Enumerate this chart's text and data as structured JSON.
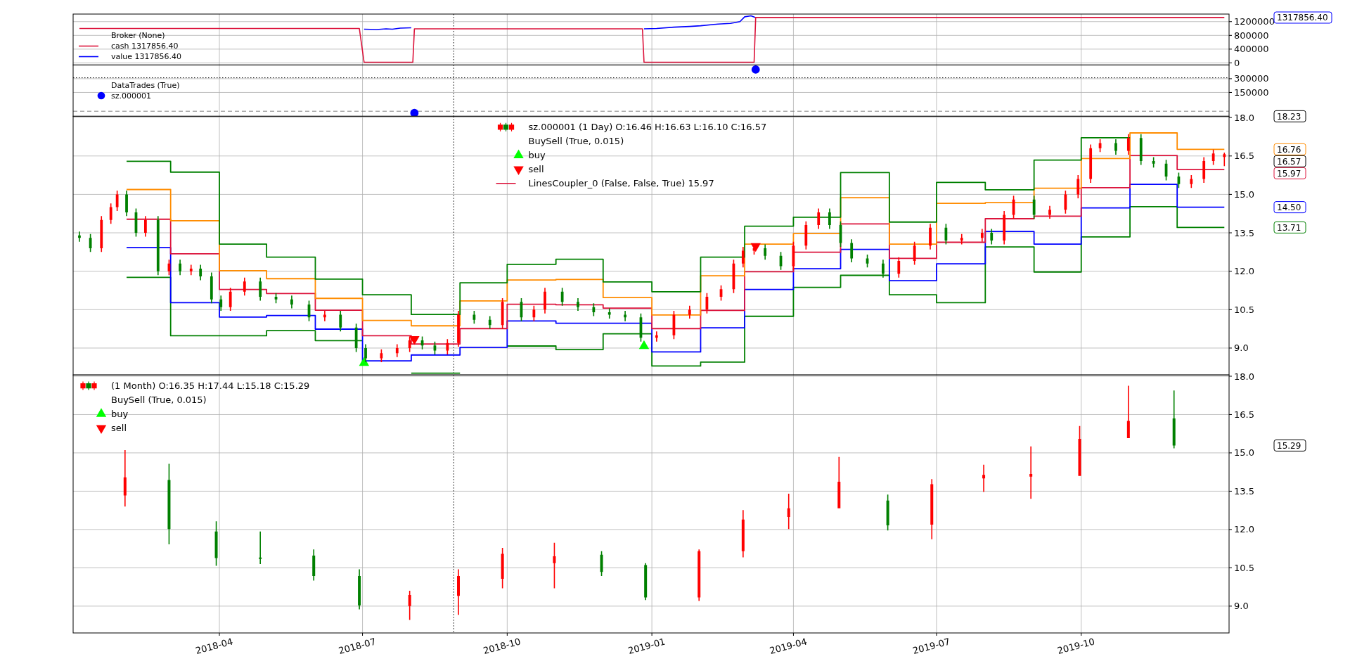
{
  "chart_data": [
    {
      "type": "line",
      "legend_title": "Broker (None)",
      "legend": "bottom left",
      "grid": true,
      "tick_labels": "y",
      "xlim": [
        "2017-12-29",
        "2020-01-03"
      ],
      "xticks": [
        "2018-04",
        "2018-07",
        "2018-10",
        "2019-01",
        "2019-04",
        "2019-07",
        "2019-10"
      ],
      "ylim": [
        -60000,
        1420000
      ],
      "yticks": [
        0,
        400000,
        800000,
        1200000
      ],
      "series": [
        {
          "name": "cash 1317856.40",
          "color": "#dc143c",
          "x": [
            "2018-01-02",
            "2018-06-29",
            "2018-07-02",
            "2018-08-02",
            "2018-08-03",
            "2018-12-26",
            "2018-12-27",
            "2019-03-07",
            "2019-03-08",
            "2019-12-31"
          ],
          "values": [
            1000000,
            1000000,
            20000,
            20000,
            990000,
            990000,
            20000,
            20000,
            1320000,
            1320000
          ]
        },
        {
          "name": "value 1317856.40",
          "color": "#0000ff",
          "x": [
            "2018-07-02",
            "2018-07-10",
            "2018-07-16",
            "2018-07-20",
            "2018-07-25",
            "2018-08-01",
            "2018-08-03",
            "2018-12-27",
            "2019-01-04",
            "2019-01-15",
            "2019-01-25",
            "2019-02-01",
            "2019-02-12",
            "2019-02-20",
            "2019-02-26",
            "2019-03-01",
            "2019-03-05",
            "2019-03-08"
          ],
          "values": [
            980000,
            970000,
            990000,
            980000,
            1010000,
            1020000,
            null,
            990000,
            1000000,
            1040000,
            1060000,
            1080000,
            1130000,
            1150000,
            1200000,
            1340000,
            1370000,
            1320000
          ]
        }
      ],
      "ref_lines": [
        {
          "axis": "x",
          "value": "2018-08-28",
          "line_style": "dotted",
          "color": "#000000"
        }
      ],
      "annotations": [
        "1317856.40"
      ]
    },
    {
      "type": "scatter",
      "legend_title": "DataTrades (True)",
      "legend": "left",
      "marker": "circle",
      "grid": true,
      "tick_labels": "y",
      "xlim": [
        "2017-12-29",
        "2020-01-03"
      ],
      "xticks": [
        "2018-04",
        "2018-07",
        "2018-10",
        "2019-01",
        "2019-04",
        "2019-07",
        "2019-10"
      ],
      "ylim": [
        -110000,
        450000
      ],
      "yticks": [
        150000,
        300000
      ],
      "series": [
        {
          "name": "sz.000001",
          "color": "#0000ff",
          "x": [
            "2018-08-03",
            "2019-03-08"
          ],
          "values": [
            -75000,
            400000
          ]
        }
      ],
      "ref_lines": [
        {
          "axis": "y",
          "value": 310000,
          "line_style": "dotted",
          "color": "#000000"
        },
        {
          "axis": "y",
          "value": -55000,
          "line_style": "dashed",
          "color": "#808080"
        },
        {
          "axis": "x",
          "value": "2018-08-28",
          "line_style": "dotted",
          "color": "#000000"
        }
      ]
    },
    {
      "type": "candlestick",
      "legend_title": "BuySell (True, 0.015)",
      "legend": "top",
      "grid": true,
      "tick_labels": "y",
      "xlim": [
        "2017-12-29",
        "2020-01-03"
      ],
      "xticks": [
        "2018-04",
        "2018-07",
        "2018-10",
        "2019-01",
        "2019-04",
        "2019-07",
        "2019-10"
      ],
      "ylim": [
        7.95,
        18.05
      ],
      "yticks": [
        {
          "value": 9,
          "label": "9.0"
        },
        {
          "value": 10.5,
          "label": "10.5"
        },
        {
          "value": 12,
          "label": "12.0"
        },
        {
          "value": 13.5,
          "label": "13.5"
        },
        {
          "value": 15,
          "label": "15.0"
        },
        {
          "value": 16.5,
          "label": "16.5"
        },
        {
          "value": 18,
          "label": "18.0"
        }
      ],
      "x": [
        "2018-02-01",
        "2018-03-01",
        "2018-04-01",
        "2018-05-01",
        "2018-06-01",
        "2018-07-01",
        "2018-08-01",
        "2018-09-01",
        "2018-10-01",
        "2018-11-01",
        "2018-12-01",
        "2019-01-01",
        "2019-02-01",
        "2019-03-01",
        "2019-04-01",
        "2019-05-01",
        "2019-06-01",
        "2019-07-01",
        "2019-08-01",
        "2019-09-01",
        "2019-10-01",
        "2019-11-01",
        "2019-12-01",
        "2019-12-31"
      ],
      "series": [
        {
          "name": "sz.000001 (1 Day) O:16.46 H:16.63 L:16.10 C:16.57",
          "x": [
            "2018-01-02",
            "2018-01-09",
            "2018-01-16",
            "2018-01-22",
            "2018-01-26",
            "2018-02-01",
            "2018-02-07",
            "2018-02-13",
            "2018-02-21",
            "2018-02-28",
            "2018-03-07",
            "2018-03-14",
            "2018-03-20",
            "2018-03-27",
            "2018-04-02",
            "2018-04-08",
            "2018-04-17",
            "2018-04-27",
            "2018-05-07",
            "2018-05-17",
            "2018-05-28",
            "2018-06-07",
            "2018-06-17",
            "2018-06-27",
            "2018-07-03",
            "2018-07-13",
            "2018-07-23",
            "2018-07-31",
            "2018-08-08",
            "2018-08-16",
            "2018-08-24",
            "2018-08-31",
            "2018-09-10",
            "2018-09-20",
            "2018-09-28",
            "2018-10-10",
            "2018-10-18",
            "2018-10-25",
            "2018-11-05",
            "2018-11-15",
            "2018-11-25",
            "2018-12-05",
            "2018-12-15",
            "2018-12-25",
            "2019-01-04",
            "2019-01-15",
            "2019-01-25",
            "2019-02-05",
            "2019-02-14",
            "2019-02-22",
            "2019-02-28",
            "2019-03-07",
            "2019-03-14",
            "2019-03-24",
            "2019-04-01",
            "2019-04-09",
            "2019-04-17",
            "2019-04-24",
            "2019-05-01",
            "2019-05-08",
            "2019-05-18",
            "2019-05-28",
            "2019-06-07",
            "2019-06-17",
            "2019-06-27",
            "2019-07-07",
            "2019-07-17",
            "2019-07-30",
            "2019-08-05",
            "2019-08-13",
            "2019-08-19",
            "2019-09-01",
            "2019-09-11",
            "2019-09-21",
            "2019-09-29",
            "2019-10-07",
            "2019-10-13",
            "2019-10-23",
            "2019-10-31",
            "2019-11-08",
            "2019-11-16",
            "2019-11-24",
            "2019-12-02",
            "2019-12-10",
            "2019-12-18",
            "2019-12-24",
            "2019-12-31"
          ],
          "ohlc": [
            [
              13.4,
              13.55,
              13.15,
              13.3
            ],
            [
              13.3,
              13.45,
              12.75,
              12.9
            ],
            [
              12.9,
              14.15,
              12.75,
              14.0
            ],
            [
              14.0,
              14.65,
              13.85,
              14.5
            ],
            [
              14.5,
              15.15,
              14.35,
              15.0
            ],
            [
              15.0,
              15.15,
              14.15,
              14.3
            ],
            [
              14.3,
              14.45,
              13.35,
              13.5
            ],
            [
              13.5,
              14.15,
              13.35,
              14.0
            ],
            [
              14.0,
              14.15,
              11.85,
              12.0
            ],
            [
              12.0,
              12.45,
              11.85,
              12.3
            ],
            [
              12.3,
              12.45,
              11.85,
              12.0
            ],
            [
              12.0,
              12.25,
              11.85,
              12.1
            ],
            [
              12.1,
              12.25,
              11.65,
              11.8
            ],
            [
              11.8,
              11.95,
              10.75,
              10.9
            ],
            [
              10.9,
              11.05,
              10.45,
              10.6
            ],
            [
              10.6,
              11.35,
              10.45,
              11.2
            ],
            [
              11.2,
              11.75,
              11.05,
              11.6
            ],
            [
              11.6,
              11.75,
              10.85,
              11.0
            ],
            [
              11.0,
              11.15,
              10.75,
              10.9
            ],
            [
              10.9,
              11.05,
              10.55,
              10.7
            ],
            [
              10.7,
              10.85,
              10.05,
              10.2
            ],
            [
              10.2,
              10.45,
              10.05,
              10.3
            ],
            [
              10.3,
              10.45,
              9.65,
              9.8
            ],
            [
              9.8,
              9.95,
              8.85,
              9.0
            ],
            [
              9.0,
              9.15,
              8.45,
              8.6
            ],
            [
              8.6,
              8.95,
              8.45,
              8.8
            ],
            [
              8.8,
              9.15,
              8.65,
              9.0
            ],
            [
              9.0,
              9.45,
              8.85,
              9.3
            ],
            [
              9.3,
              9.45,
              8.95,
              9.1
            ],
            [
              9.1,
              9.25,
              8.75,
              8.9
            ],
            [
              8.9,
              9.35,
              8.75,
              9.2
            ],
            [
              9.2,
              10.45,
              9.05,
              10.3
            ],
            [
              10.3,
              10.45,
              9.95,
              10.1
            ],
            [
              10.1,
              10.25,
              9.75,
              9.9
            ],
            [
              9.9,
              10.95,
              9.75,
              10.8
            ],
            [
              10.8,
              10.95,
              10.05,
              10.2
            ],
            [
              10.2,
              10.65,
              10.05,
              10.5
            ],
            [
              10.5,
              11.35,
              10.35,
              11.2
            ],
            [
              11.2,
              11.35,
              10.65,
              10.8
            ],
            [
              10.8,
              10.95,
              10.45,
              10.6
            ],
            [
              10.6,
              10.75,
              10.25,
              10.4
            ],
            [
              10.4,
              10.55,
              10.15,
              10.3
            ],
            [
              10.3,
              10.45,
              10.05,
              10.2
            ],
            [
              10.2,
              10.35,
              9.25,
              9.4
            ],
            [
              9.4,
              9.65,
              9.25,
              9.5
            ],
            [
              9.5,
              10.45,
              9.35,
              10.3
            ],
            [
              10.3,
              10.65,
              10.15,
              10.5
            ],
            [
              10.5,
              11.15,
              10.35,
              11.0
            ],
            [
              11.0,
              11.45,
              10.85,
              11.3
            ],
            [
              11.3,
              12.45,
              11.15,
              12.3
            ],
            [
              12.3,
              12.95,
              12.15,
              12.8
            ],
            [
              12.8,
              13.05,
              12.65,
              12.9
            ],
            [
              12.9,
              13.05,
              12.45,
              12.6
            ],
            [
              12.6,
              12.75,
              12.05,
              12.2
            ],
            [
              12.2,
              13.15,
              12.05,
              13.0
            ],
            [
              13.0,
              13.95,
              12.85,
              13.8
            ],
            [
              13.8,
              14.45,
              13.65,
              14.3
            ],
            [
              14.3,
              14.45,
              13.65,
              13.8
            ],
            [
              13.8,
              13.95,
              12.95,
              13.1
            ],
            [
              13.1,
              13.25,
              12.35,
              12.5
            ],
            [
              12.5,
              12.65,
              12.15,
              12.3
            ],
            [
              12.3,
              12.45,
              11.75,
              11.9
            ],
            [
              11.9,
              12.55,
              11.75,
              12.4
            ],
            [
              12.4,
              13.15,
              12.25,
              13.0
            ],
            [
              13.0,
              13.85,
              12.85,
              13.7
            ],
            [
              13.7,
              13.85,
              13.05,
              13.2
            ],
            [
              13.2,
              13.45,
              13.05,
              13.3
            ],
            [
              13.3,
              13.65,
              13.15,
              13.5
            ],
            [
              13.5,
              13.65,
              13.05,
              13.2
            ],
            [
              13.2,
              14.35,
              13.05,
              14.2
            ],
            [
              14.2,
              14.95,
              14.05,
              14.8
            ],
            [
              14.8,
              14.95,
              14.05,
              14.2
            ],
            [
              14.2,
              14.55,
              14.05,
              14.4
            ],
            [
              14.4,
              15.15,
              14.25,
              15.0
            ],
            [
              15.0,
              15.75,
              14.85,
              15.6
            ],
            [
              15.6,
              16.95,
              15.45,
              16.8
            ],
            [
              16.8,
              17.15,
              16.65,
              17.0
            ],
            [
              17.0,
              17.15,
              16.55,
              16.7
            ],
            [
              16.7,
              17.35,
              16.55,
              17.2
            ],
            [
              17.2,
              17.35,
              16.15,
              16.3
            ],
            [
              16.3,
              16.45,
              16.05,
              16.2
            ],
            [
              16.2,
              16.35,
              15.55,
              15.7
            ],
            [
              15.7,
              15.85,
              15.25,
              15.4
            ],
            [
              15.4,
              15.75,
              15.25,
              15.6
            ],
            [
              15.6,
              16.45,
              15.45,
              16.3
            ],
            [
              16.3,
              16.75,
              16.15,
              16.6
            ],
            [
              16.46,
              16.63,
              16.1,
              16.57
            ]
          ]
        },
        {
          "type": "scatter",
          "name": "buy",
          "color": "#00ff00",
          "marker": "triangle",
          "x": [
            "2018-07-02",
            "2018-12-27"
          ],
          "values": [
            8.42,
            9.08
          ]
        },
        {
          "type": "scatter",
          "name": "sell",
          "color": "#ff0000",
          "marker": "triangle_down",
          "x": [
            "2018-08-03",
            "2019-03-08"
          ],
          "values": [
            9.35,
            12.98
          ]
        },
        {
          "type": "step",
          "color": "#008000",
          "x": [
            "2018-02-01",
            "2018-03-01",
            "2018-04-01",
            "2018-05-01",
            "2018-06-01",
            "2018-07-01",
            "2018-08-01",
            "2018-09-01",
            "2018-10-01",
            "2018-11-01",
            "2018-12-01",
            "2019-01-01",
            "2019-02-01",
            "2019-03-01",
            "2019-04-01",
            "2019-05-01",
            "2019-06-01",
            "2019-07-01",
            "2019-08-01",
            "2019-09-01",
            "2019-10-01",
            "2019-11-01"
          ],
          "values": [
            16.29,
            15.87,
            13.06,
            12.55,
            11.69,
            11.08,
            10.31,
            11.55,
            12.27,
            12.47,
            11.58,
            11.2,
            12.55,
            13.76,
            14.11,
            15.85,
            13.92,
            15.47,
            15.18,
            16.34,
            17.21,
            17.21
          ]
        },
        {
          "type": "step",
          "color": "#ff8c00",
          "values": [
            15.19,
            13.97,
            12.02,
            11.71,
            10.94,
            10.08,
            9.87,
            10.84,
            11.66,
            11.68,
            10.97,
            10.29,
            11.82,
            13.06,
            13.47,
            14.87,
            13.06,
            14.65,
            14.68,
            15.24,
            16.4,
            17.4,
            16.76,
            16.76
          ]
        },
        {
          "type": "step",
          "name": "LinesCoupler_0 (False, False, True) 15.97",
          "color": "#dc143c",
          "values": [
            14.03,
            12.68,
            11.29,
            11.13,
            10.48,
            9.48,
            9.16,
            9.76,
            10.71,
            10.69,
            10.56,
            9.76,
            10.47,
            11.98,
            12.74,
            13.85,
            12.5,
            13.13,
            14.05,
            14.15,
            15.26,
            16.52,
            15.97,
            15.97
          ]
        },
        {
          "type": "step",
          "color": "#0000ff",
          "values": [
            12.92,
            10.77,
            10.21,
            10.27,
            9.74,
            8.5,
            8.73,
            9.03,
            10.06,
            9.97,
            9.97,
            8.85,
            9.79,
            11.29,
            12.1,
            12.85,
            11.63,
            12.29,
            13.55,
            13.06,
            14.47,
            15.39,
            14.5,
            14.5
          ]
        },
        {
          "type": "step",
          "color": "#008000",
          "values": [
            11.76,
            9.48,
            9.48,
            9.68,
            9.29,
            null,
            8.02,
            null,
            9.08,
            8.94,
            9.56,
            8.3,
            8.45,
            10.24,
            11.37,
            11.84,
            11.08,
            10.77,
            12.95,
            11.97,
            13.34,
            14.52,
            13.71,
            13.71
          ]
        }
      ],
      "ref_lines": [
        {
          "axis": "x",
          "value": "2018-08-28",
          "line_style": "dotted",
          "color": "#000000"
        }
      ],
      "annotations": [
        "18.23",
        "16.76",
        "16.57",
        "15.97",
        "14.50",
        "13.71"
      ]
    },
    {
      "type": "candlestick",
      "legend_title": "BuySell (True, 0.015)",
      "legend": "top left",
      "grid": true,
      "xlim": [
        "2017-12-29",
        "2020-01-03"
      ],
      "xticks": [
        "2018-04",
        "2018-07",
        "2018-10",
        "2019-01",
        "2019-04",
        "2019-07",
        "2019-10"
      ],
      "ylim": [
        7.95,
        18.05
      ],
      "yticks": [
        {
          "value": 9,
          "label": "9.0"
        },
        {
          "value": 10.5,
          "label": "10.5"
        },
        {
          "value": 12,
          "label": "12.0"
        },
        {
          "value": 13.5,
          "label": "13.5"
        },
        {
          "value": 15,
          "label": "15.0"
        },
        {
          "value": 16.5,
          "label": "16.5"
        },
        {
          "value": 18,
          "label": "18.0"
        }
      ],
      "series": [
        {
          "name": "(1 Month) O:16.35 H:17.44 L:15.18 C:15.29",
          "x": [
            "2018-01-31",
            "2018-02-28",
            "2018-03-30",
            "2018-04-27",
            "2018-05-31",
            "2018-06-29",
            "2018-07-31",
            "2018-08-31",
            "2018-09-28",
            "2018-10-31",
            "2018-11-30",
            "2018-12-28",
            "2019-01-31",
            "2019-02-28",
            "2019-03-29",
            "2019-04-30",
            "2019-05-31",
            "2019-06-28",
            "2019-07-31",
            "2019-08-30",
            "2019-09-30",
            "2019-10-31",
            "2019-11-29"
          ],
          "ohlc": [
            [
              13.33,
              15.11,
              12.9,
              14.04
            ],
            [
              13.94,
              14.57,
              11.42,
              12.02
            ],
            [
              11.92,
              12.32,
              10.58,
              10.88
            ],
            [
              10.9,
              11.92,
              10.65,
              10.85
            ],
            [
              10.98,
              11.22,
              10.0,
              10.18
            ],
            [
              10.18,
              10.44,
              8.87,
              9.03
            ],
            [
              9.0,
              9.6,
              8.46,
              9.44
            ],
            [
              9.4,
              10.44,
              8.66,
              10.18
            ],
            [
              10.07,
              11.28,
              9.7,
              11.05
            ],
            [
              10.68,
              11.48,
              9.7,
              10.95
            ],
            [
              11.01,
              11.15,
              10.18,
              10.34
            ],
            [
              10.61,
              10.68,
              9.24,
              9.34
            ],
            [
              9.34,
              11.22,
              9.2,
              11.15
            ],
            [
              11.15,
              12.76,
              10.91,
              12.39
            ],
            [
              12.49,
              13.4,
              12.02,
              12.83
            ],
            [
              12.83,
              14.84,
              12.83,
              13.87
            ],
            [
              13.13,
              13.37,
              11.96,
              12.16
            ],
            [
              12.19,
              13.97,
              11.62,
              13.77
            ],
            [
              14.0,
              14.54,
              13.47,
              14.14
            ],
            [
              14.07,
              15.25,
              13.2,
              14.17
            ],
            [
              14.1,
              16.05,
              14.1,
              15.55
            ],
            [
              15.58,
              17.63,
              15.58,
              16.25
            ],
            [
              16.35,
              17.44,
              15.18,
              15.29
            ]
          ]
        },
        {
          "type": "scatter",
          "name": "buy",
          "color": "#00ff00",
          "marker": "triangle"
        },
        {
          "type": "scatter",
          "name": "sell",
          "color": "#ff0000",
          "marker": "triangle_down"
        }
      ],
      "ref_lines": [
        {
          "axis": "x",
          "value": "2018-08-28",
          "line_style": "dotted",
          "color": "#000000"
        }
      ],
      "annotations": [
        "15.29"
      ]
    }
  ]
}
